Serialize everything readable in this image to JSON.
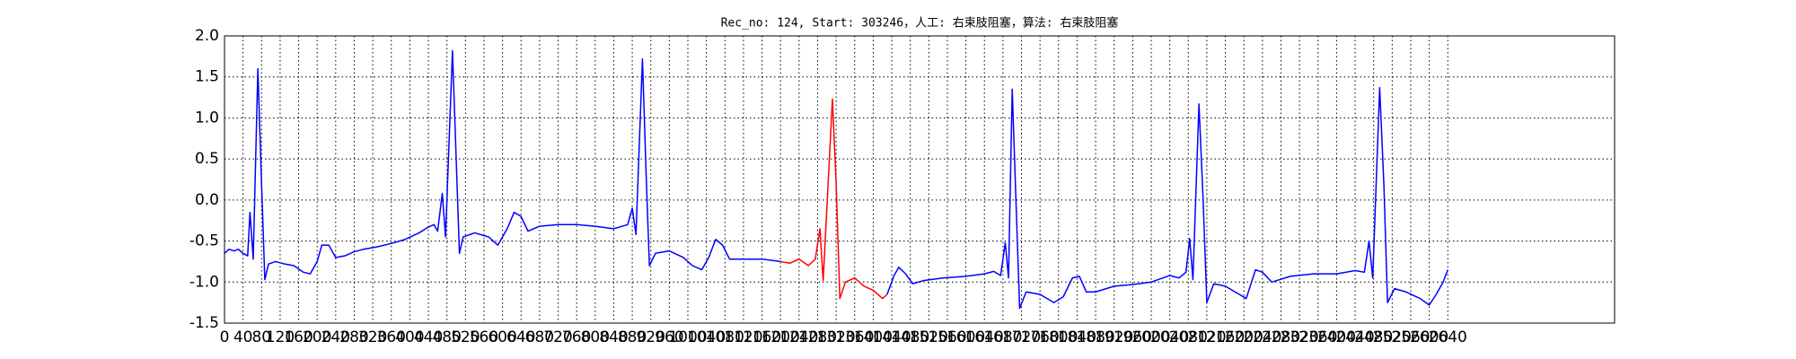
{
  "chart_data": {
    "type": "line",
    "title": "Rec_no: 124, Start: 303246，人工: 右束肢阻塞，算法: 右束肢阻塞",
    "xlim": [
      0,
      3000
    ],
    "ylim": [
      -1.5,
      2.0
    ],
    "xticks": [
      0,
      40,
      80,
      120,
      160,
      200,
      240,
      280,
      320,
      360,
      400,
      440,
      480,
      520,
      560,
      600,
      640,
      680,
      720,
      760,
      800,
      840,
      880,
      920,
      960,
      1000,
      1040,
      1080,
      1120,
      1160,
      1200,
      1240,
      1280,
      1320,
      1360,
      1400,
      1440,
      1480,
      1520,
      1560,
      1600,
      1640,
      1680,
      1720,
      1760,
      1800,
      1840,
      1880,
      1920,
      1960,
      2000,
      2040,
      2080,
      2120,
      2160,
      2200,
      2240,
      2280,
      2320,
      2360,
      2400,
      2440,
      2480,
      2520,
      2560,
      2600,
      2640
    ],
    "yticks": [
      -1.5,
      {
        "value": -1.0,
        "label": "-1.0"
      },
      -0.5,
      {
        "value": 0.0,
        "label": "0.0"
      },
      0.5,
      {
        "value": 1.0,
        "label": "1.0"
      },
      1.5,
      {
        "value": 2.0,
        "label": "2.0"
      }
    ],
    "grid": true,
    "series": [
      {
        "color": "#0000ff",
        "x": [
          0,
          10,
          20,
          30,
          40,
          50,
          55,
          62,
          72,
          80,
          87,
          95,
          110,
          130,
          150,
          170,
          185,
          200,
          210,
          225,
          240,
          260,
          280,
          300,
          330,
          360,
          390,
          420,
          440,
          452,
          460,
          470,
          477,
          492,
          500,
          507,
          515,
          540,
          570,
          590,
          610,
          625,
          640,
          655,
          680,
          720,
          760,
          800,
          840,
          870,
          880,
          888,
          902,
          910,
          917,
          930,
          960,
          990,
          1010,
          1030,
          1045,
          1060,
          1075,
          1090,
          1120,
          1160,
          1200,
          1310,
          1430,
          1445,
          1455,
          1470,
          1485,
          1510,
          1550,
          1600,
          1640,
          1660,
          1675,
          1685,
          1692,
          1700,
          1708,
          1716,
          1730,
          1760,
          1790,
          1810,
          1830,
          1845,
          1860,
          1880,
          1920,
          1960,
          2000,
          2040,
          2060,
          2075,
          2083,
          2090,
          2103,
          2112,
          2120,
          2135,
          2160,
          2190,
          2205,
          2225,
          2240,
          2260,
          2300,
          2350,
          2400,
          2440,
          2460,
          2470,
          2478,
          2493,
          2502,
          2510,
          2525,
          2550,
          2580,
          2600,
          2615,
          2630,
          2640
        ],
        "values": [
          -0.65,
          -0.6,
          -0.62,
          -0.6,
          -0.65,
          -0.68,
          -0.15,
          -0.72,
          1.6,
          0.2,
          -0.97,
          -0.78,
          -0.75,
          -0.78,
          -0.8,
          -0.88,
          -0.9,
          -0.75,
          -0.55,
          -0.55,
          -0.7,
          -0.68,
          -0.63,
          -0.6,
          -0.57,
          -0.53,
          -0.48,
          -0.4,
          -0.33,
          -0.3,
          -0.38,
          0.08,
          -0.45,
          1.82,
          0.5,
          -0.65,
          -0.45,
          -0.4,
          -0.45,
          -0.55,
          -0.35,
          -0.15,
          -0.2,
          -0.38,
          -0.32,
          -0.3,
          -0.3,
          -0.32,
          -0.35,
          -0.3,
          -0.1,
          -0.42,
          1.72,
          0.3,
          -0.8,
          -0.65,
          -0.62,
          -0.7,
          -0.8,
          -0.85,
          -0.7,
          -0.48,
          -0.55,
          -0.72,
          -0.72,
          -0.72,
          -0.75,
          null,
          -1.15,
          -0.92,
          -0.82,
          -0.9,
          -1.02,
          -0.98,
          -0.95,
          -0.93,
          -0.9,
          -0.87,
          -0.92,
          -0.52,
          -0.95,
          1.35,
          0.0,
          -1.32,
          -1.12,
          -1.15,
          -1.25,
          -1.18,
          -0.95,
          -0.93,
          -1.12,
          -1.12,
          -1.05,
          -1.03,
          -1.0,
          -0.92,
          -0.95,
          -0.88,
          -0.47,
          -0.97,
          1.17,
          0.0,
          -1.25,
          -1.02,
          -1.05,
          -1.15,
          -1.2,
          -0.85,
          -0.88,
          -1.0,
          -0.93,
          -0.9,
          -0.9,
          -0.86,
          -0.88,
          -0.5,
          -0.95,
          1.37,
          0.2,
          -1.25,
          -1.08,
          -1.12,
          -1.2,
          -1.28,
          -1.15,
          -1.0,
          -0.85
        ]
      },
      {
        "color": "#ff0000",
        "x": [
          1200,
          1220,
          1240,
          1260,
          1275,
          1285,
          1292,
          1312,
          1320,
          1328,
          1340,
          1360,
          1380,
          1400,
          1420,
          1430
        ],
        "values": [
          -0.75,
          -0.77,
          -0.72,
          -0.8,
          -0.72,
          -0.35,
          -0.98,
          1.23,
          0.2,
          -1.2,
          -1.0,
          -0.95,
          -1.05,
          -1.1,
          -1.2,
          -1.15
        ]
      }
    ]
  }
}
